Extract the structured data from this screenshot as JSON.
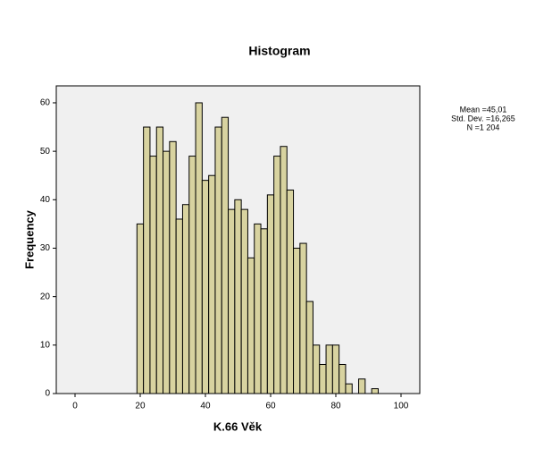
{
  "chart_data": {
    "type": "histogram",
    "title": "Histogram",
    "x_label": "K.66 Věk",
    "y_label": "Frequency",
    "bins": [
      19,
      21,
      23,
      25,
      27,
      29,
      31,
      33,
      35,
      37,
      39,
      41,
      43,
      45,
      47,
      49,
      51,
      53,
      55,
      57,
      59,
      61,
      63,
      65,
      67,
      69,
      71,
      73,
      75,
      77,
      79,
      81,
      83,
      85,
      87,
      89,
      91,
      93
    ],
    "values": [
      35,
      55,
      49,
      55,
      50,
      52,
      36,
      39,
      49,
      60,
      44,
      45,
      55,
      57,
      38,
      40,
      38,
      28,
      35,
      34,
      41,
      49,
      51,
      42,
      30,
      31,
      19,
      10,
      6,
      10,
      10,
      6,
      2,
      0,
      3,
      0,
      1
    ],
    "color": "#d8d3a0",
    "xlim": [
      -5.75,
      105.75
    ],
    "xticks": [
      0,
      20,
      40,
      60,
      80,
      100
    ],
    "ylim": [
      0,
      63.5
    ],
    "yticks": [
      0,
      10,
      20,
      30,
      40,
      50,
      60
    ],
    "stats": [
      "Mean =45,01",
      "Std. Dev. =16,265",
      "N =1 204"
    ]
  }
}
